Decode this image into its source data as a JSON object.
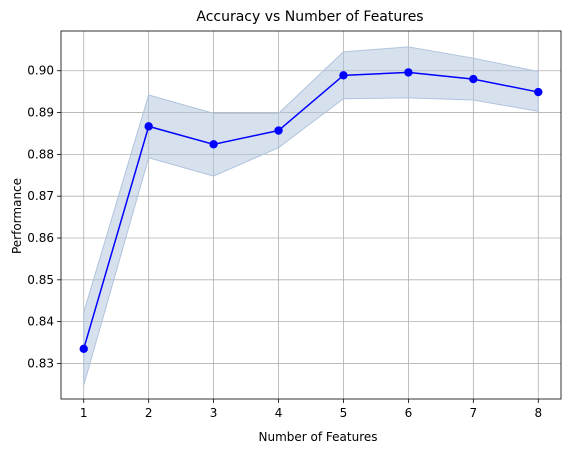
{
  "chart_data": {
    "type": "line",
    "title": "Accuracy vs Number of Features",
    "xlabel": "Number of Features",
    "ylabel": "Performance",
    "x": [
      1,
      2,
      3,
      4,
      5,
      6,
      7,
      8
    ],
    "xlim": [
      0.65,
      8.35
    ],
    "ylim": [
      0.8215,
      0.9095
    ],
    "xticks": [
      1,
      2,
      3,
      4,
      5,
      6,
      7,
      8
    ],
    "yticks": [
      0.83,
      0.84,
      0.85,
      0.86,
      0.87,
      0.88,
      0.89,
      0.9
    ],
    "ytick_labels": [
      "0.83",
      "0.84",
      "0.85",
      "0.86",
      "0.87",
      "0.88",
      "0.89",
      "0.90"
    ],
    "grid": true,
    "series": [
      {
        "values": [
          0.8335,
          0.8867,
          0.8824,
          0.8857,
          0.8989,
          0.8996,
          0.898,
          0.8949
        ],
        "upper": [
          0.8422,
          0.8942,
          0.8898,
          0.8898,
          0.9045,
          0.9057,
          0.903,
          0.8998
        ],
        "lower": [
          0.8248,
          0.8792,
          0.8748,
          0.8816,
          0.8933,
          0.8935,
          0.893,
          0.8903
        ],
        "color": "#0000ff",
        "band_color": "#b0c4de"
      }
    ]
  }
}
